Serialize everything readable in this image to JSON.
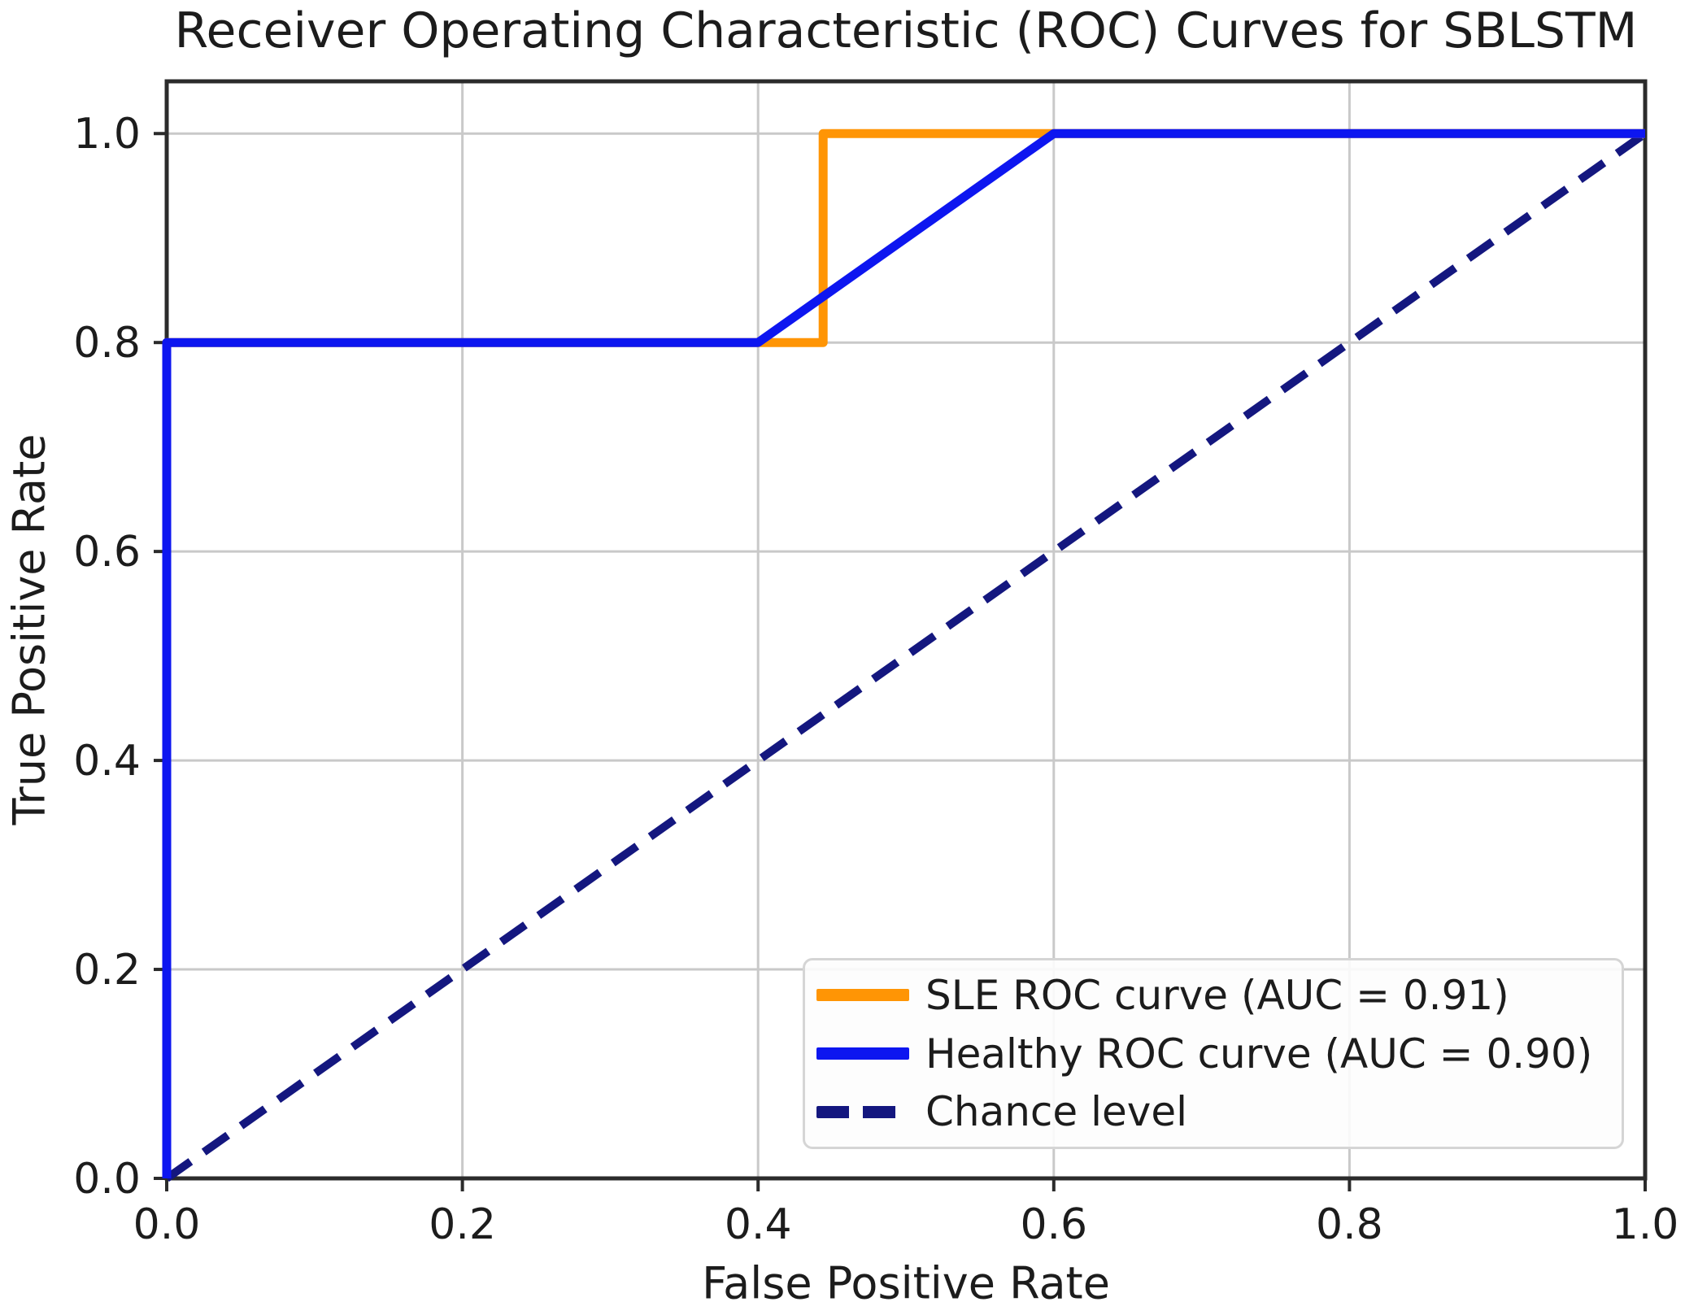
{
  "chart_data": {
    "type": "line",
    "title": "Receiver Operating Characteristic (ROC) Curves for SBLSTM",
    "xlabel": "False Positive Rate",
    "ylabel": "True Positive Rate",
    "xlim": [
      0.0,
      1.0
    ],
    "ylim": [
      0.0,
      1.05
    ],
    "x_ticks": [
      "0.0",
      "0.2",
      "0.4",
      "0.6",
      "0.8",
      "1.0"
    ],
    "y_ticks": [
      "0.0",
      "0.2",
      "0.4",
      "0.6",
      "0.8",
      "1.0"
    ],
    "grid": true,
    "legend_position": "lower right",
    "series": [
      {
        "name": "SLE ROC curve (AUC = 0.91)",
        "auc": 0.91,
        "color": "#FF9505",
        "style": "solid",
        "points": [
          [
            0.0,
            0.0
          ],
          [
            0.0,
            0.8
          ],
          [
            0.444,
            0.8
          ],
          [
            0.444,
            1.0
          ],
          [
            1.0,
            1.0
          ]
        ]
      },
      {
        "name": "Healthy ROC curve (AUC = 0.90)",
        "auc": 0.9,
        "color": "#0D16F0",
        "style": "solid",
        "points": [
          [
            0.0,
            0.0
          ],
          [
            0.0,
            0.8
          ],
          [
            0.4,
            0.8
          ],
          [
            0.6,
            1.0
          ],
          [
            1.0,
            1.0
          ]
        ]
      },
      {
        "name": "Chance level",
        "color": "#14177F",
        "style": "dashed",
        "points": [
          [
            0.0,
            0.0
          ],
          [
            1.0,
            1.0
          ]
        ]
      }
    ],
    "colors": {
      "background": "#FFFFFF",
      "grid": "#C9C9C9",
      "spine": "#2B2B2B",
      "text": "#1C1C1C",
      "legend_border": "#D5D5D5",
      "legend_background": "#FDFDFD"
    }
  }
}
